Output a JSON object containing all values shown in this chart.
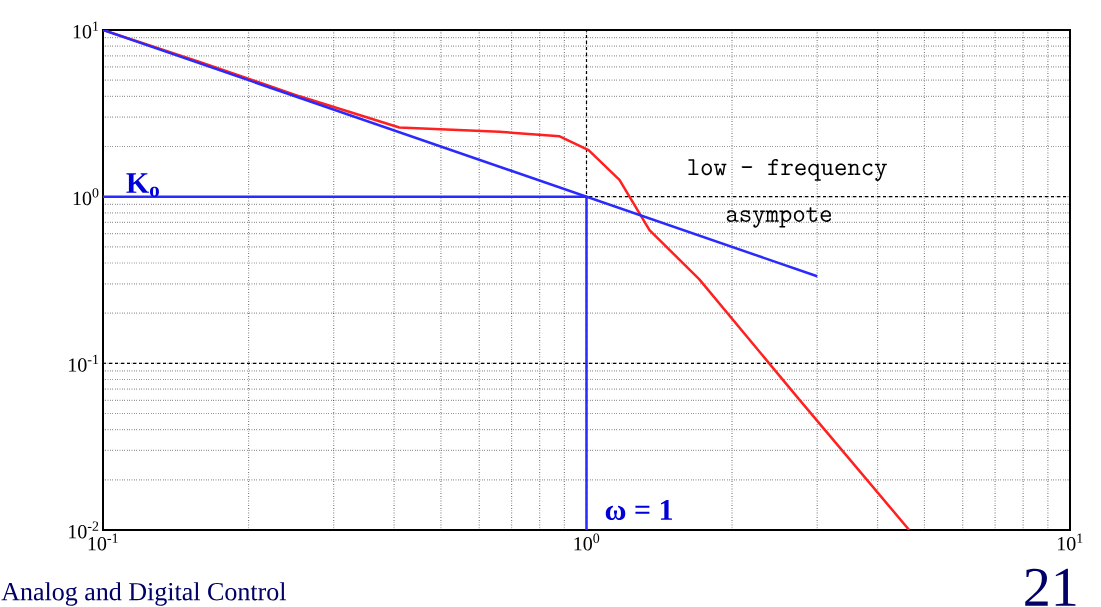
{
  "chart_data": {
    "type": "line",
    "log": "xy",
    "grid": true,
    "xlim": [
      0.1,
      10
    ],
    "ylim": [
      0.01,
      10
    ],
    "xticks": [
      {
        "value": 0.1,
        "label": "10$^{-1}$"
      },
      {
        "value": 1,
        "label": "10$^{0}$"
      },
      {
        "value": 10,
        "label": "10$^{1}$"
      }
    ],
    "yticks": [
      {
        "value": 0.01,
        "label": "10$^{-2}$"
      },
      {
        "value": 0.1,
        "label": "10$^{-1}$"
      },
      {
        "value": 1,
        "label": "10$^{0}$"
      },
      {
        "value": 10,
        "label": "10$^{1}$"
      }
    ],
    "series": [
      {
        "color": "#ff2020",
        "x": [
          0.1,
          0.159,
          0.255,
          0.41,
          0.66,
          0.88,
          1.01,
          1.17,
          1.35,
          1.71,
          2.75,
          4.65
        ],
        "values": [
          10,
          6.4,
          4.0,
          2.6,
          2.45,
          2.3,
          1.9,
          1.26,
          0.63,
          0.32,
          0.061,
          0.01
        ]
      },
      {
        "color": "#2a2aff",
        "x": [
          0.1,
          3
        ],
        "values": [
          10,
          0.333
        ]
      },
      {
        "color": "#2a2aff",
        "x": [
          0.1,
          1,
          1
        ],
        "values": [
          1,
          1,
          0.01
        ]
      }
    ],
    "annotations": [
      "K$_{o}$",
      "ω = 1",
      "low – frequency",
      "asympote",
      "Analog and Digital Control",
      "21"
    ]
  }
}
